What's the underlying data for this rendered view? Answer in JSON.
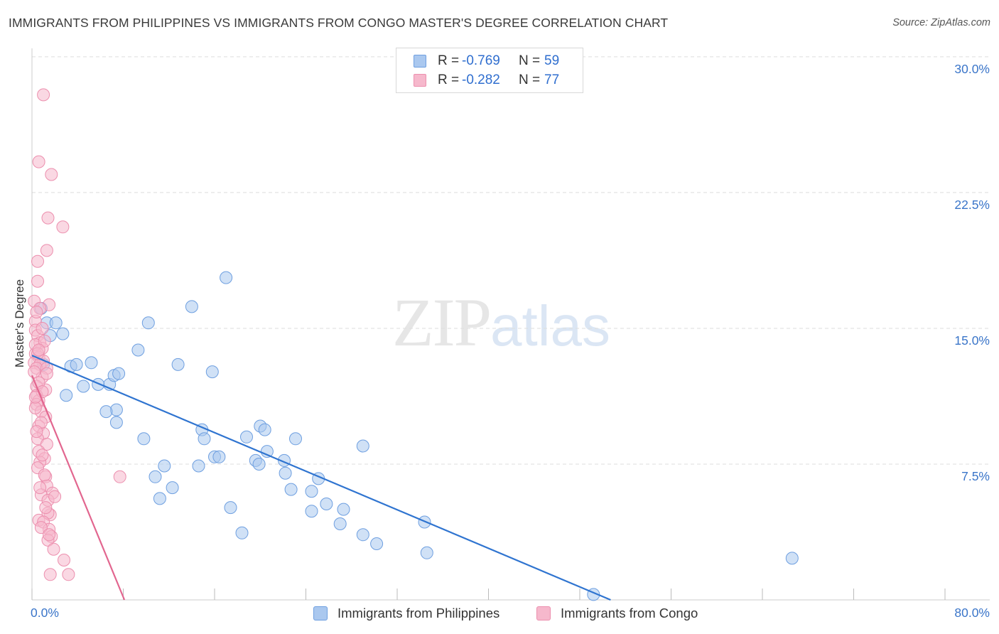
{
  "header": {
    "title": "IMMIGRANTS FROM PHILIPPINES VS IMMIGRANTS FROM CONGO MASTER'S DEGREE CORRELATION CHART",
    "source": "Source: ZipAtlas.com"
  },
  "watermark": {
    "zip": "ZIP",
    "atlas": "atlas"
  },
  "legend": {
    "rows": [
      {
        "r_label": "R =",
        "r_value": "-0.769",
        "n_label": "N =",
        "n_value": "59"
      },
      {
        "r_label": "R =",
        "r_value": "-0.282",
        "n_label": "N =",
        "n_value": "77"
      }
    ]
  },
  "axes": {
    "ylabel": "Master's Degree",
    "yticks": [
      "30.0%",
      "22.5%",
      "15.0%",
      "7.5%"
    ],
    "xticks": [
      "0.0%",
      "80.0%"
    ]
  },
  "colors": {
    "philippines_fill": "#aac8ef",
    "philippines_stroke": "#6e9fe0",
    "philippines_line": "#2f74d0",
    "congo_fill": "#f6b8cc",
    "congo_stroke": "#ec8fae",
    "congo_line": "#e2668f",
    "grid": "#dddddd",
    "tick_text": "#3a75c9"
  },
  "chart_data": {
    "type": "scatter",
    "title": "IMMIGRANTS FROM PHILIPPINES VS IMMIGRANTS FROM CONGO MASTER'S DEGREE CORRELATION CHART",
    "xlabel": "",
    "ylabel": "Master's Degree",
    "xlim": [
      0,
      80
    ],
    "ylim": [
      0,
      31.5
    ],
    "y_gridlines": [
      7.5,
      15,
      22.5,
      30
    ],
    "legend_position": "top-center",
    "series": [
      {
        "name": "Immigrants from Philippines",
        "r": -0.769,
        "n": 59,
        "trend": {
          "x": [
            0,
            50.7
          ],
          "y": [
            13.5,
            0
          ]
        },
        "points": [
          [
            0.8,
            16.1
          ],
          [
            1.3,
            15.3
          ],
          [
            2.1,
            15.3
          ],
          [
            1.6,
            14.6
          ],
          [
            3.4,
            12.9
          ],
          [
            3.0,
            11.3
          ],
          [
            5.2,
            13.1
          ],
          [
            4.5,
            11.8
          ],
          [
            3.9,
            13.0
          ],
          [
            6.8,
            11.9
          ],
          [
            5.8,
            11.9
          ],
          [
            7.2,
            12.4
          ],
          [
            7.6,
            12.5
          ],
          [
            7.4,
            10.5
          ],
          [
            9.3,
            13.8
          ],
          [
            10.2,
            15.3
          ],
          [
            7.4,
            9.8
          ],
          [
            6.5,
            10.4
          ],
          [
            9.8,
            8.9
          ],
          [
            11.6,
            7.4
          ],
          [
            10.8,
            6.8
          ],
          [
            11.2,
            5.6
          ],
          [
            12.8,
            13.0
          ],
          [
            12.3,
            6.2
          ],
          [
            14.0,
            16.2
          ],
          [
            15.8,
            12.6
          ],
          [
            14.9,
            9.4
          ],
          [
            15.1,
            8.9
          ],
          [
            14.6,
            7.4
          ],
          [
            16.0,
            7.9
          ],
          [
            16.4,
            7.9
          ],
          [
            17.0,
            17.8
          ],
          [
            18.8,
            9.0
          ],
          [
            17.4,
            5.1
          ],
          [
            18.4,
            3.7
          ],
          [
            20.0,
            9.6
          ],
          [
            20.6,
            8.2
          ],
          [
            19.6,
            7.7
          ],
          [
            19.9,
            7.5
          ],
          [
            20.4,
            9.4
          ],
          [
            22.1,
            7.7
          ],
          [
            23.1,
            8.9
          ],
          [
            22.2,
            7.0
          ],
          [
            22.7,
            6.1
          ],
          [
            24.5,
            6.0
          ],
          [
            24.5,
            4.9
          ],
          [
            25.8,
            5.3
          ],
          [
            25.1,
            6.7
          ],
          [
            27.3,
            5.0
          ],
          [
            27.0,
            4.2
          ],
          [
            29.0,
            8.5
          ],
          [
            30.2,
            3.1
          ],
          [
            29.0,
            3.6
          ],
          [
            34.4,
            4.3
          ],
          [
            34.6,
            2.6
          ],
          [
            66.6,
            2.3
          ],
          [
            49.2,
            0.3
          ],
          [
            2.7,
            14.7
          ],
          [
            1.0,
            13.0
          ]
        ]
      },
      {
        "name": "Immigrants from Congo",
        "r": -0.282,
        "n": 77,
        "trend": {
          "x": [
            0,
            8.1
          ],
          "y": [
            12.4,
            0
          ]
        },
        "points": [
          [
            1.0,
            27.9
          ],
          [
            0.6,
            24.2
          ],
          [
            1.7,
            23.5
          ],
          [
            1.4,
            21.1
          ],
          [
            2.7,
            20.6
          ],
          [
            1.3,
            19.3
          ],
          [
            0.5,
            18.7
          ],
          [
            0.5,
            17.6
          ],
          [
            0.2,
            16.5
          ],
          [
            1.5,
            16.3
          ],
          [
            0.7,
            16.1
          ],
          [
            0.3,
            15.4
          ],
          [
            0.3,
            14.9
          ],
          [
            0.5,
            14.6
          ],
          [
            0.7,
            14.2
          ],
          [
            0.9,
            13.9
          ],
          [
            0.3,
            13.6
          ],
          [
            0.6,
            13.4
          ],
          [
            1.0,
            13.2
          ],
          [
            0.2,
            13.1
          ],
          [
            0.7,
            13.0
          ],
          [
            0.4,
            12.8
          ],
          [
            1.3,
            12.8
          ],
          [
            0.9,
            12.3
          ],
          [
            0.4,
            11.8
          ],
          [
            1.2,
            11.6
          ],
          [
            0.4,
            11.3
          ],
          [
            0.6,
            11.0
          ],
          [
            0.4,
            10.8
          ],
          [
            0.8,
            10.4
          ],
          [
            1.2,
            10.1
          ],
          [
            0.6,
            9.6
          ],
          [
            1.0,
            9.2
          ],
          [
            0.5,
            8.9
          ],
          [
            1.3,
            8.6
          ],
          [
            0.6,
            8.2
          ],
          [
            1.1,
            7.8
          ],
          [
            0.7,
            7.6
          ],
          [
            1.2,
            6.8
          ],
          [
            1.3,
            6.3
          ],
          [
            1.8,
            5.9
          ],
          [
            0.8,
            5.8
          ],
          [
            1.4,
            5.5
          ],
          [
            2.0,
            5.7
          ],
          [
            1.6,
            4.7
          ],
          [
            0.6,
            4.4
          ],
          [
            1.4,
            4.8
          ],
          [
            1.0,
            4.3
          ],
          [
            1.5,
            3.9
          ],
          [
            1.7,
            3.5
          ],
          [
            1.4,
            3.3
          ],
          [
            1.9,
            2.8
          ],
          [
            2.8,
            2.2
          ],
          [
            1.6,
            1.4
          ],
          [
            3.2,
            1.4
          ],
          [
            7.7,
            6.8
          ],
          [
            0.3,
            14.1
          ],
          [
            0.5,
            13.6
          ],
          [
            0.2,
            12.6
          ],
          [
            0.6,
            12.0
          ],
          [
            0.9,
            11.5
          ],
          [
            0.3,
            10.6
          ],
          [
            0.8,
            9.8
          ],
          [
            0.4,
            9.3
          ],
          [
            0.9,
            8.0
          ],
          [
            0.5,
            7.3
          ],
          [
            1.1,
            6.9
          ],
          [
            0.7,
            6.2
          ],
          [
            1.2,
            5.1
          ],
          [
            0.8,
            4.0
          ],
          [
            1.5,
            3.6
          ],
          [
            0.4,
            15.9
          ],
          [
            0.9,
            15.0
          ],
          [
            1.1,
            14.3
          ],
          [
            0.6,
            13.8
          ],
          [
            1.3,
            12.5
          ],
          [
            0.3,
            11.2
          ]
        ]
      }
    ]
  },
  "bottom_legend": {
    "items": [
      "Immigrants from Philippines",
      "Immigrants from Congo"
    ]
  }
}
